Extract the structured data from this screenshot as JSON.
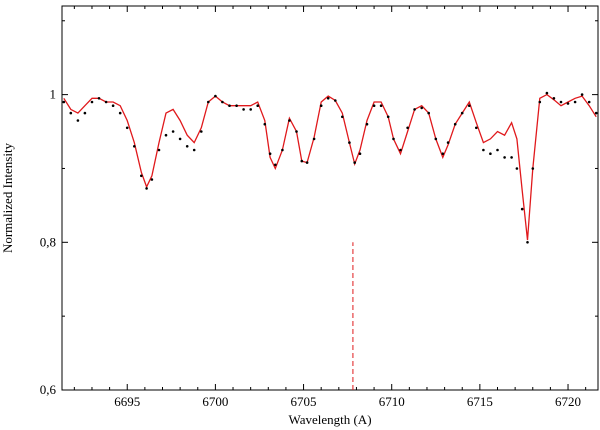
{
  "chart_data": {
    "type": "scatter",
    "xlabel": "Wavelength (A)",
    "ylabel": "Normalized Intensity",
    "xlim": [
      6691.3,
      6721.7
    ],
    "ylim": [
      0.6,
      1.12
    ],
    "x_ticks": [
      6695,
      6700,
      6705,
      6710,
      6715,
      6720
    ],
    "x_tick_labels": [
      "6695",
      "6700",
      "6705",
      "6710",
      "6715",
      "6720"
    ],
    "y_ticks": [
      0.6,
      0.8,
      1.0
    ],
    "y_tick_labels": [
      "0,6",
      "0,8",
      "1"
    ],
    "grid": false,
    "colors": {
      "observed": "#000000",
      "model": "#e0191c",
      "marker": "#e0191c"
    },
    "series": [
      {
        "style": "dots",
        "x": [
          6691.4,
          6691.8,
          6692.2,
          6692.6,
          6693.0,
          6693.4,
          6693.8,
          6694.2,
          6694.6,
          6695.0,
          6695.4,
          6695.8,
          6696.1,
          6696.4,
          6696.8,
          6697.2,
          6697.6,
          6698.0,
          6698.4,
          6698.8,
          6699.2,
          6699.6,
          6700.0,
          6700.4,
          6700.8,
          6701.2,
          6701.6,
          6702.0,
          6702.4,
          6702.8,
          6703.1,
          6703.4,
          6703.8,
          6704.2,
          6704.6,
          6704.9,
          6705.2,
          6705.6,
          6706.0,
          6706.4,
          6706.8,
          6707.2,
          6707.6,
          6707.9,
          6708.2,
          6708.6,
          6709.0,
          6709.4,
          6709.8,
          6710.1,
          6710.5,
          6710.9,
          6711.3,
          6711.7,
          6712.1,
          6712.5,
          6712.9,
          6713.2,
          6713.6,
          6714.0,
          6714.4,
          6714.8,
          6715.2,
          6715.6,
          6716.0,
          6716.4,
          6716.8,
          6717.1,
          6717.4,
          6717.7,
          6718.0,
          6718.4,
          6718.8,
          6719.2,
          6719.6,
          6720.0,
          6720.4,
          6720.8,
          6721.2,
          6721.6
        ],
        "y": [
          0.99,
          0.975,
          0.965,
          0.975,
          0.99,
          0.995,
          0.99,
          0.985,
          0.975,
          0.955,
          0.93,
          0.89,
          0.873,
          0.885,
          0.925,
          0.945,
          0.95,
          0.94,
          0.93,
          0.925,
          0.95,
          0.99,
          0.998,
          0.99,
          0.985,
          0.985,
          0.98,
          0.98,
          0.985,
          0.96,
          0.92,
          0.905,
          0.925,
          0.965,
          0.95,
          0.91,
          0.908,
          0.94,
          0.985,
          0.995,
          0.992,
          0.97,
          0.935,
          0.908,
          0.92,
          0.96,
          0.985,
          0.985,
          0.97,
          0.94,
          0.925,
          0.955,
          0.98,
          0.982,
          0.975,
          0.94,
          0.92,
          0.935,
          0.96,
          0.975,
          0.985,
          0.955,
          0.925,
          0.92,
          0.925,
          0.915,
          0.915,
          0.9,
          0.845,
          0.8,
          0.9,
          0.99,
          1.002,
          0.995,
          0.99,
          0.988,
          0.99,
          1.0,
          0.99,
          0.975
        ]
      },
      {
        "style": "line",
        "x": [
          6691.4,
          6691.8,
          6692.2,
          6692.6,
          6693.0,
          6693.4,
          6693.8,
          6694.2,
          6694.6,
          6695.0,
          6695.4,
          6695.8,
          6696.1,
          6696.4,
          6696.8,
          6697.2,
          6697.6,
          6698.0,
          6698.4,
          6698.8,
          6699.2,
          6699.6,
          6700.0,
          6700.4,
          6700.8,
          6701.2,
          6701.6,
          6702.0,
          6702.4,
          6702.8,
          6703.1,
          6703.4,
          6703.8,
          6704.2,
          6704.6,
          6704.9,
          6705.2,
          6705.6,
          6706.0,
          6706.4,
          6706.8,
          6707.2,
          6707.6,
          6707.9,
          6708.2,
          6708.6,
          6709.0,
          6709.4,
          6709.8,
          6710.1,
          6710.5,
          6710.9,
          6711.3,
          6711.7,
          6712.1,
          6712.5,
          6712.9,
          6713.2,
          6713.6,
          6714.0,
          6714.4,
          6714.8,
          6715.2,
          6715.6,
          6716.0,
          6716.4,
          6716.8,
          6717.1,
          6717.4,
          6717.7,
          6718.0,
          6718.4,
          6718.8,
          6719.2,
          6719.6,
          6720.0,
          6720.4,
          6720.8,
          6721.2,
          6721.6
        ],
        "y": [
          0.995,
          0.98,
          0.975,
          0.985,
          0.995,
          0.995,
          0.99,
          0.99,
          0.985,
          0.965,
          0.935,
          0.895,
          0.875,
          0.89,
          0.935,
          0.975,
          0.98,
          0.965,
          0.945,
          0.935,
          0.955,
          0.99,
          0.998,
          0.99,
          0.985,
          0.985,
          0.985,
          0.985,
          0.99,
          0.965,
          0.915,
          0.9,
          0.925,
          0.968,
          0.95,
          0.91,
          0.908,
          0.942,
          0.99,
          0.998,
          0.992,
          0.975,
          0.935,
          0.906,
          0.925,
          0.965,
          0.99,
          0.99,
          0.97,
          0.94,
          0.92,
          0.95,
          0.98,
          0.985,
          0.975,
          0.94,
          0.915,
          0.932,
          0.96,
          0.975,
          0.99,
          0.962,
          0.935,
          0.94,
          0.95,
          0.945,
          0.962,
          0.94,
          0.87,
          0.803,
          0.9,
          0.995,
          1.0,
          0.993,
          0.985,
          0.99,
          0.995,
          0.998,
          0.985,
          0.97
        ]
      }
    ],
    "annotations": [
      {
        "type": "vertical-dashed-line",
        "x": 6707.8,
        "y_from": 0.6,
        "y_to": 0.8
      }
    ]
  }
}
